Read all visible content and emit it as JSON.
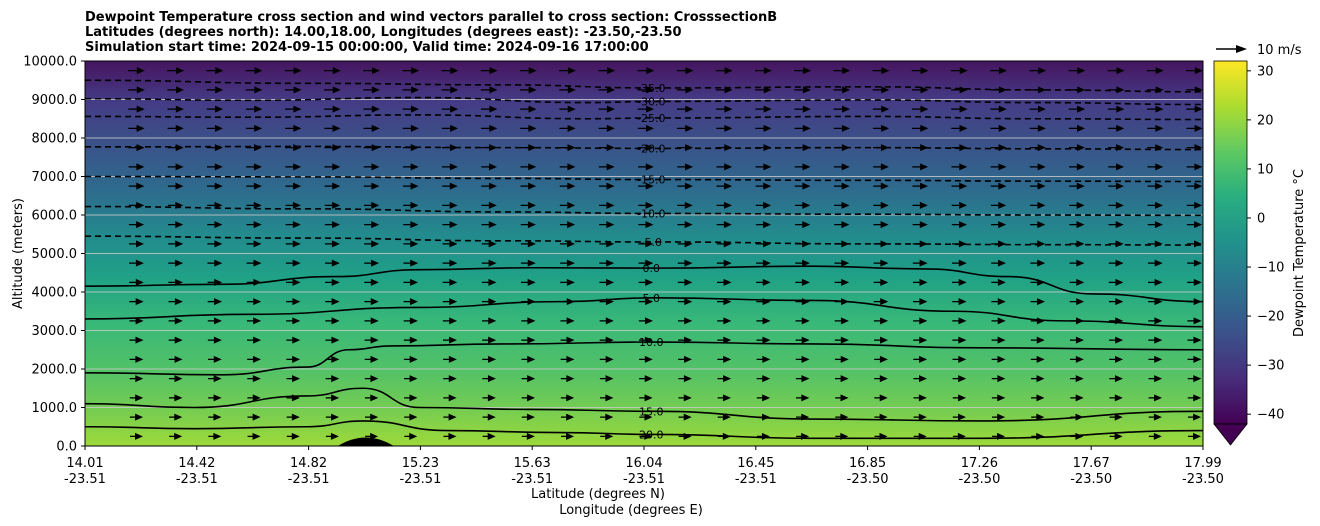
{
  "chart_data": {
    "type": "contour",
    "title_lines": [
      "Dewpoint Temperature cross section and wind vectors parallel to cross section: CrosssectionB",
      "Latitudes (degrees north): 14.00,18.00, Longitudes (degrees east): -23.50,-23.50",
      "Simulation start time: 2024-09-15 00:00:00, Valid time: 2024-09-16 17:00:00"
    ],
    "ylabel": "Altitude (meters)",
    "xlabel_lat": "Latitude (degrees N)",
    "xlabel_lon": "Longitude (degrees E)",
    "ylim": [
      0,
      10000
    ],
    "y_ticks": [
      "0.0",
      "1000.0",
      "2000.0",
      "3000.0",
      "4000.0",
      "5000.0",
      "6000.0",
      "7000.0",
      "8000.0",
      "9000.0",
      "10000.0"
    ],
    "x_ticks": [
      {
        "lat": "14.01",
        "lon": "-23.51"
      },
      {
        "lat": "14.42",
        "lon": "-23.51"
      },
      {
        "lat": "14.82",
        "lon": "-23.51"
      },
      {
        "lat": "15.23",
        "lon": "-23.51"
      },
      {
        "lat": "15.63",
        "lon": "-23.51"
      },
      {
        "lat": "16.04",
        "lon": "-23.51"
      },
      {
        "lat": "16.45",
        "lon": "-23.51"
      },
      {
        "lat": "16.85",
        "lon": "-23.50"
      },
      {
        "lat": "17.26",
        "lon": "-23.50"
      },
      {
        "lat": "17.67",
        "lon": "-23.50"
      },
      {
        "lat": "17.99",
        "lon": "-23.50"
      }
    ],
    "xlim": [
      14.01,
      17.99
    ],
    "grid": "horizontal",
    "colorbar": {
      "label": "Dewpoint Temperature $^\\circ$C",
      "label_display": "Dewpoint Temperature °C",
      "range": [
        -42,
        32
      ],
      "ticks": [
        "30",
        "20",
        "10",
        "0",
        "−10",
        "−20",
        "−30",
        "−40"
      ],
      "tick_values": [
        30,
        20,
        10,
        0,
        -10,
        -20,
        -30,
        -40
      ],
      "colormap": "viridis",
      "extend": "min"
    },
    "quiver_key": "10 m/s",
    "contours": [
      {
        "level": -35,
        "label": "-35.0",
        "dashed": true,
        "points": [
          [
            14.01,
            9500
          ],
          [
            14.8,
            9420
          ],
          [
            15.5,
            9380
          ],
          [
            16.04,
            9300
          ],
          [
            16.8,
            9330
          ],
          [
            17.4,
            9250
          ],
          [
            17.99,
            9200
          ]
        ]
      },
      {
        "level": -30,
        "label": "-30.0",
        "dashed": true,
        "points": [
          [
            14.01,
            9020
          ],
          [
            14.6,
            8980
          ],
          [
            15.2,
            9050
          ],
          [
            15.8,
            8920
          ],
          [
            16.04,
            8950
          ],
          [
            16.8,
            8990
          ],
          [
            17.4,
            8920
          ],
          [
            17.99,
            8870
          ]
        ]
      },
      {
        "level": -25,
        "label": "-25.0",
        "dashed": true,
        "points": [
          [
            14.01,
            8560
          ],
          [
            14.6,
            8540
          ],
          [
            15.2,
            8600
          ],
          [
            15.8,
            8500
          ],
          [
            16.04,
            8520
          ],
          [
            16.8,
            8560
          ],
          [
            17.4,
            8500
          ],
          [
            17.99,
            8480
          ]
        ]
      },
      {
        "level": -20,
        "label": "-20.0",
        "dashed": true,
        "points": [
          [
            14.01,
            7770
          ],
          [
            14.8,
            7780
          ],
          [
            15.5,
            7750
          ],
          [
            16.04,
            7730
          ],
          [
            16.8,
            7750
          ],
          [
            17.4,
            7720
          ],
          [
            17.99,
            7700
          ]
        ]
      },
      {
        "level": -15,
        "label": "-15.0",
        "dashed": true,
        "points": [
          [
            14.01,
            7000
          ],
          [
            14.8,
            6990
          ],
          [
            15.5,
            6950
          ],
          [
            16.04,
            6920
          ],
          [
            16.8,
            6900
          ],
          [
            17.4,
            6880
          ],
          [
            17.99,
            6870
          ]
        ]
      },
      {
        "level": -10,
        "label": "-10.0",
        "dashed": true,
        "points": [
          [
            14.01,
            6220
          ],
          [
            14.8,
            6160
          ],
          [
            15.5,
            6080
          ],
          [
            16.04,
            6040
          ],
          [
            16.8,
            6020
          ],
          [
            17.4,
            6000
          ],
          [
            17.99,
            5990
          ]
        ]
      },
      {
        "level": -5,
        "label": "-5.0",
        "dashed": true,
        "points": [
          [
            14.01,
            5450
          ],
          [
            14.8,
            5400
          ],
          [
            15.5,
            5330
          ],
          [
            16.04,
            5300
          ],
          [
            16.8,
            5250
          ],
          [
            17.4,
            5230
          ],
          [
            17.99,
            5220
          ]
        ]
      },
      {
        "level": 0,
        "label": "0.0",
        "dashed": false,
        "points": [
          [
            14.01,
            4150
          ],
          [
            14.5,
            4200
          ],
          [
            14.9,
            4400
          ],
          [
            15.2,
            4580
          ],
          [
            15.6,
            4630
          ],
          [
            16.04,
            4620
          ],
          [
            16.6,
            4670
          ],
          [
            17.0,
            4600
          ],
          [
            17.3,
            4400
          ],
          [
            17.6,
            3950
          ],
          [
            17.99,
            3750
          ]
        ]
      },
      {
        "level": 5,
        "label": "5.0",
        "dashed": false,
        "points": [
          [
            14.01,
            3300
          ],
          [
            14.6,
            3420
          ],
          [
            15.2,
            3600
          ],
          [
            15.7,
            3750
          ],
          [
            16.04,
            3850
          ],
          [
            16.6,
            3780
          ],
          [
            17.1,
            3500
          ],
          [
            17.5,
            3250
          ],
          [
            17.99,
            3100
          ]
        ]
      },
      {
        "level": 10,
        "label": "10.0",
        "dashed": false,
        "points": [
          [
            14.01,
            1900
          ],
          [
            14.5,
            1850
          ],
          [
            14.8,
            2050
          ],
          [
            14.95,
            2500
          ],
          [
            15.1,
            2600
          ],
          [
            15.5,
            2650
          ],
          [
            16.04,
            2700
          ],
          [
            16.6,
            2650
          ],
          [
            17.2,
            2550
          ],
          [
            17.99,
            2500
          ]
        ]
      },
      {
        "level": 15,
        "label": "15.0",
        "dashed": false,
        "points": [
          [
            14.01,
            1100
          ],
          [
            14.4,
            1000
          ],
          [
            14.8,
            1300
          ],
          [
            15.0,
            1500
          ],
          [
            15.2,
            1000
          ],
          [
            15.6,
            950
          ],
          [
            16.04,
            900
          ],
          [
            16.6,
            700
          ],
          [
            17.2,
            650
          ],
          [
            17.99,
            900
          ]
        ]
      },
      {
        "level": 20,
        "label": "20.0",
        "dashed": false,
        "points": [
          [
            14.01,
            500
          ],
          [
            14.4,
            450
          ],
          [
            14.8,
            500
          ],
          [
            15.0,
            650
          ],
          [
            15.3,
            400
          ],
          [
            15.7,
            350
          ],
          [
            16.04,
            300
          ],
          [
            16.6,
            200
          ],
          [
            17.2,
            200
          ],
          [
            17.99,
            400
          ]
        ]
      }
    ],
    "terrain": {
      "center": 15.01,
      "half_width": 0.1,
      "peak": 220
    }
  }
}
